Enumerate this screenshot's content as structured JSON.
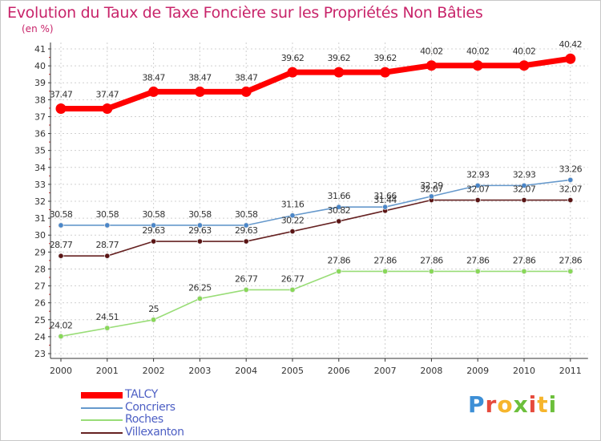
{
  "header": {
    "title": "Evolution du Taux de Taxe Foncière sur les Propriétés Non Bâties",
    "unit": "(en %)"
  },
  "colors": {
    "title": "#c8246a",
    "axis": "#333333",
    "grid": "#d0d0d0",
    "tick_label": "#333333",
    "legend_label": "#4d5fc4"
  },
  "logo": {
    "text": "Proxiti",
    "colors": [
      "#3d8fd6",
      "#e64a3c",
      "#f6b52c",
      "#6cbf3b",
      "#e64a3c",
      "#f6b52c",
      "#6cbf3b"
    ]
  },
  "chart_data": {
    "type": "line",
    "title": "Evolution du Taux de Taxe Foncière sur les Propriétés Non Bâties",
    "ylabel": "(en %)",
    "xlabel": "",
    "x": [
      "2000",
      "2001",
      "2002",
      "2003",
      "2004",
      "2005",
      "2006",
      "2007",
      "2008",
      "2009",
      "2010",
      "2011"
    ],
    "ylim": [
      23,
      41
    ],
    "yticks": [
      23,
      24,
      25,
      26,
      27,
      28,
      29,
      30,
      31,
      32,
      33,
      34,
      35,
      36,
      37,
      38,
      39,
      40,
      41
    ],
    "grid": "horizontal dashed",
    "legend_position": "bottom-left",
    "series": [
      {
        "name": "TALCY",
        "color": "#ff0000",
        "values": [
          37.47,
          37.47,
          38.47,
          38.47,
          38.47,
          39.62,
          39.62,
          39.62,
          40.02,
          40.02,
          40.02,
          40.42
        ],
        "labels": [
          "37.47",
          "37.47",
          "38.47",
          "38.47",
          "38.47",
          "39.62",
          "39.62",
          "39.62",
          "40.02",
          "40.02",
          "40.02",
          "40.42"
        ]
      },
      {
        "name": "Concriers",
        "color": "#6699cc",
        "values": [
          30.58,
          30.58,
          30.58,
          30.58,
          30.58,
          31.16,
          31.66,
          31.66,
          32.29,
          32.93,
          32.93,
          33.26
        ],
        "labels": [
          "30.58",
          "30.58",
          "30.58",
          "30.58",
          "30.58",
          "31.16",
          "31.66",
          "31.66",
          "32.29",
          "32.93",
          "32.93",
          "33.26"
        ]
      },
      {
        "name": "Roches",
        "color": "#99dd77",
        "values": [
          24.02,
          24.51,
          25,
          26.25,
          26.77,
          26.77,
          27.86,
          27.86,
          27.86,
          27.86,
          27.86,
          27.86
        ],
        "labels": [
          "24.02",
          "24.51",
          "25",
          "26.25",
          "26.77",
          "26.77",
          "27.86",
          "27.86",
          "27.86",
          "27.86",
          "27.86",
          "27.86"
        ]
      },
      {
        "name": "Villexanton",
        "color": "#662222",
        "values": [
          28.77,
          28.77,
          29.63,
          29.63,
          29.63,
          30.22,
          30.82,
          31.44,
          32.07,
          32.07,
          32.07,
          32.07
        ],
        "labels": [
          "28.77",
          "28.77",
          "29.63",
          "29.63",
          "29.63",
          "30.22",
          "30.82",
          "31.44",
          "32.07",
          "32.07",
          "32.07",
          "32.07"
        ]
      }
    ]
  }
}
